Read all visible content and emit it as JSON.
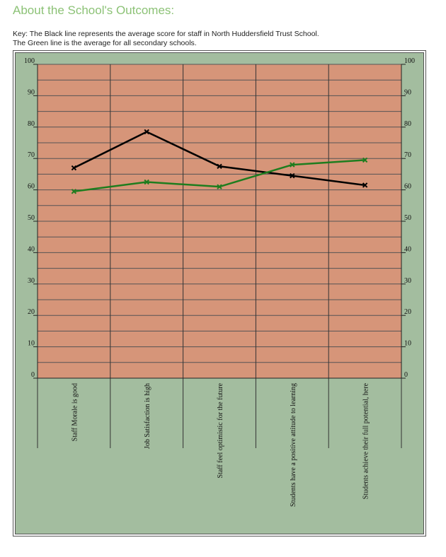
{
  "heading": "About the School's Outcomes:",
  "key": {
    "line1": "Key: The Black line represents the average score for staff in North Huddersfield Trust School.",
    "line2": "The Green line is the average for all secondary schools."
  },
  "colors": {
    "plot_background": "#d69579",
    "outer_background": "#a3bd9f",
    "school_line": "#000000",
    "national_line": "#1e7d1e",
    "heading": "#8cc276"
  },
  "chart_data": {
    "type": "line",
    "categories": [
      "Staff Morale is good",
      "Job Satisfaction is high",
      "Staff feel optimistic for the future",
      "Students have a positive attitude to learning",
      "Students achieve their full potential, here"
    ],
    "series": [
      {
        "values": [
          67,
          78.5,
          67.5,
          64.5,
          61.5
        ],
        "color": "#000000"
      },
      {
        "values": [
          59.5,
          62.5,
          61,
          68,
          69.5
        ],
        "color": "#1e7d1e"
      }
    ],
    "yticks": [
      "0",
      "10",
      "20",
      "30",
      "40",
      "50",
      "60",
      "70",
      "80",
      "90",
      "100"
    ],
    "ylim": [
      0,
      100
    ],
    "minor_grid_step": 5,
    "grid": true
  }
}
